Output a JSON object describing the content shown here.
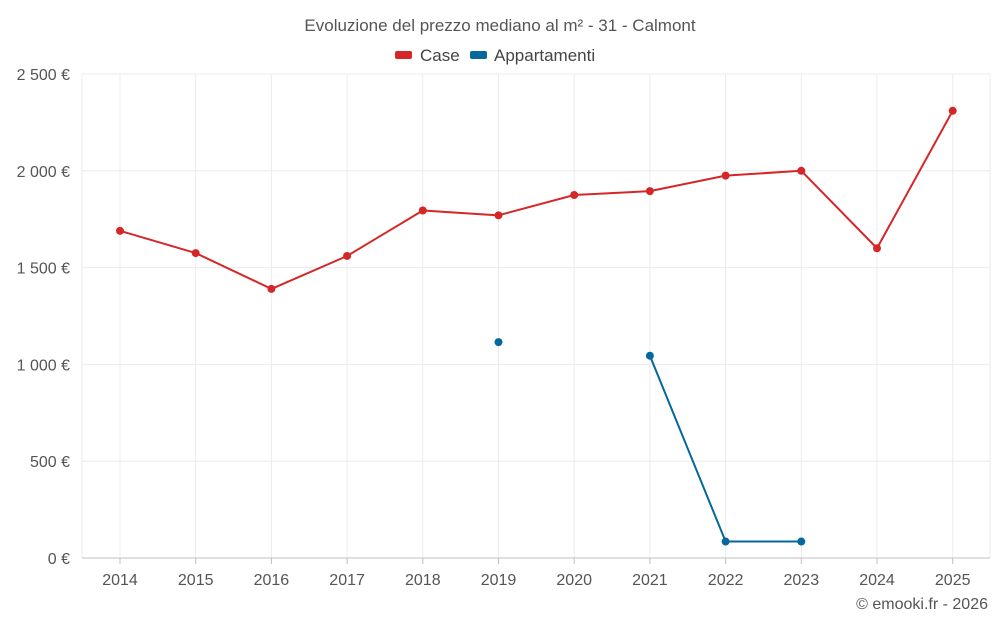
{
  "chart_data": {
    "type": "line",
    "title": "Evoluzione del prezzo mediano al m² - 31 - Calmont",
    "categories": [
      "2014",
      "2015",
      "2016",
      "2017",
      "2018",
      "2019",
      "2020",
      "2021",
      "2022",
      "2023",
      "2024",
      "2025"
    ],
    "y_tick_labels": [
      "0 €",
      "500 €",
      "1 000 €",
      "1 500 €",
      "2 000 €",
      "2 500 €"
    ],
    "y_tick_values": [
      0,
      500,
      1000,
      1500,
      2000,
      2500
    ],
    "ylim": [
      0,
      2500
    ],
    "grid": true,
    "legend_position": "top-center",
    "series": [
      {
        "name": "Case",
        "color": "#d62728",
        "values": [
          1690,
          1575,
          1390,
          1560,
          1795,
          1770,
          1875,
          1895,
          1975,
          2000,
          1600,
          2310
        ]
      },
      {
        "name": "Appartamenti",
        "color": "#04689c",
        "values": [
          null,
          null,
          null,
          null,
          null,
          1115,
          null,
          1045,
          85,
          85,
          null,
          null
        ]
      }
    ]
  },
  "credit": "© emooki.fr - 2026"
}
